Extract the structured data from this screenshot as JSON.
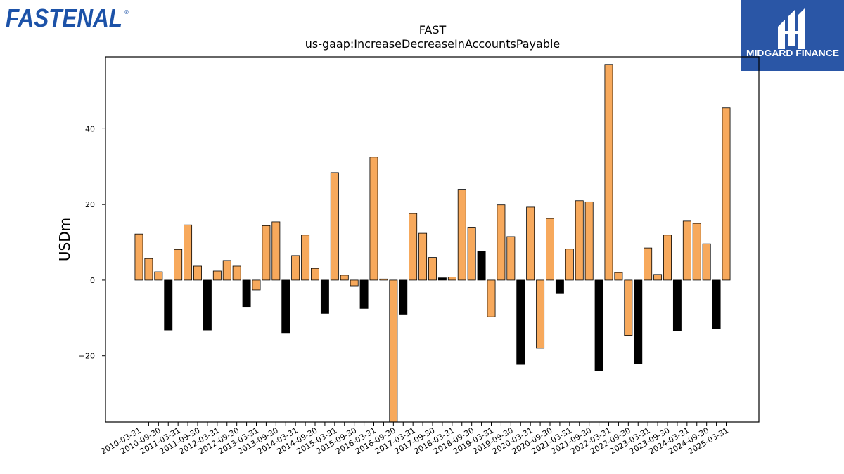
{
  "brand": {
    "company_logo_text": "FASTENAL",
    "registered_mark": "®",
    "publisher_logo_text": "MIDGARD FINANCE"
  },
  "colors": {
    "positive_bar": "#f7a95c",
    "negative_bar": "#000000",
    "axis": "#000000",
    "company_logo": "#1c52a8",
    "publisher_logo_bg": "#2a56a6"
  },
  "chart_data": {
    "type": "bar",
    "title": "FAST",
    "subtitle": "us-gaap:IncreaseDecreaseInAccountsPayable",
    "xlabel": "",
    "ylabel": "USDm",
    "ylim": [
      -37.5,
      59
    ],
    "yticks": [
      -20,
      0,
      20,
      40
    ],
    "grid": false,
    "legend": "none",
    "color_rule": "Q4 (XXXX-12-31) bars are filled black; all other quarters are orange",
    "x": [
      "2010-03-31",
      "2010-06-30",
      "2010-09-30",
      "2010-12-31",
      "2011-03-31",
      "2011-06-30",
      "2011-09-30",
      "2011-12-31",
      "2012-03-31",
      "2012-06-30",
      "2012-09-30",
      "2012-12-31",
      "2013-03-31",
      "2013-06-30",
      "2013-09-30",
      "2013-12-31",
      "2014-03-31",
      "2014-06-30",
      "2014-09-30",
      "2014-12-31",
      "2015-03-31",
      "2015-06-30",
      "2015-09-30",
      "2015-12-31",
      "2016-03-31",
      "2016-06-30",
      "2016-09-30",
      "2016-12-31",
      "2017-03-31",
      "2017-06-30",
      "2017-09-30",
      "2017-12-31",
      "2018-03-31",
      "2018-06-30",
      "2018-09-30",
      "2018-12-31",
      "2019-03-31",
      "2019-06-30",
      "2019-09-30",
      "2019-12-31",
      "2020-03-31",
      "2020-06-30",
      "2020-09-30",
      "2020-12-31",
      "2021-03-31",
      "2021-06-30",
      "2021-09-30",
      "2021-12-31",
      "2022-03-31",
      "2022-06-30",
      "2022-09-30",
      "2022-12-31",
      "2023-03-31",
      "2023-06-30",
      "2023-09-30",
      "2023-12-31",
      "2024-03-31",
      "2024-06-30",
      "2024-09-30",
      "2024-12-31",
      "2025-03-31"
    ],
    "tick_labels_shown": [
      "2010-03-31",
      "2010-09-30",
      "2011-03-31",
      "2011-09-30",
      "2012-03-31",
      "2012-09-30",
      "2013-03-31",
      "2013-09-30",
      "2014-03-31",
      "2014-09-30",
      "2015-03-31",
      "2015-09-30",
      "2016-03-31",
      "2016-09-30",
      "2017-03-31",
      "2017-09-30",
      "2018-03-31",
      "2018-09-30",
      "2019-03-31",
      "2019-09-30",
      "2020-03-31",
      "2020-09-30",
      "2021-03-31",
      "2021-09-30",
      "2022-03-31",
      "2022-09-30",
      "2023-03-31",
      "2023-09-30",
      "2024-03-31",
      "2024-09-30",
      "2025-03-31"
    ],
    "values": [
      12.2,
      5.7,
      2.2,
      -13.2,
      8.1,
      14.6,
      3.7,
      -13.2,
      2.4,
      5.2,
      3.7,
      -7.0,
      -2.6,
      14.4,
      15.4,
      -13.9,
      6.5,
      11.9,
      3.1,
      -8.8,
      28.4,
      1.3,
      -1.5,
      -7.5,
      32.5,
      0.3,
      -40.0,
      -9.0,
      17.6,
      12.4,
      6.0,
      0.6,
      0.8,
      24.0,
      14.0,
      7.6,
      -9.7,
      19.9,
      11.5,
      -22.3,
      19.3,
      -18.0,
      16.3,
      -3.4,
      8.2,
      21.0,
      20.7,
      -23.9,
      57.0,
      2.0,
      -14.6,
      -22.2,
      8.5,
      1.5,
      11.9,
      -13.3,
      15.6,
      15.0,
      9.6,
      -12.8,
      45.5
    ]
  }
}
